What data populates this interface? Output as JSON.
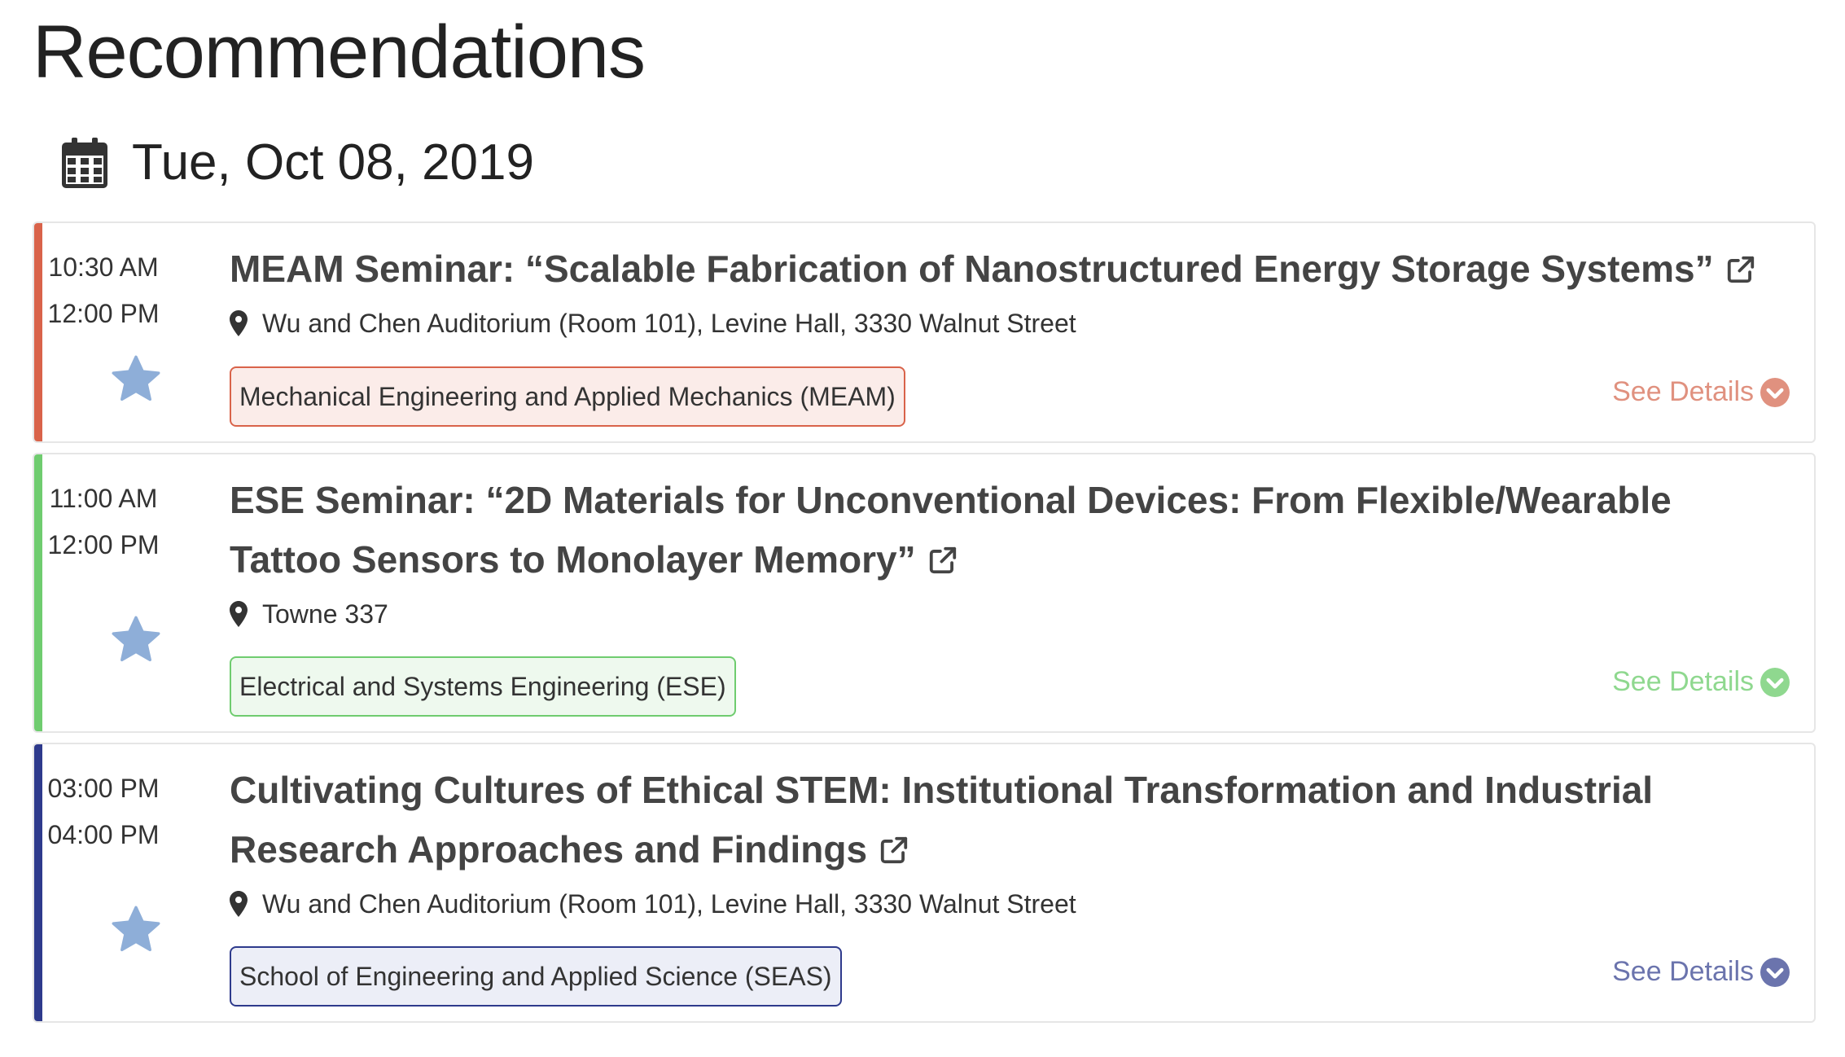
{
  "page": {
    "title": "Recommendations"
  },
  "date_header": {
    "icon": "calendar-icon",
    "label": "Tue, Oct 08, 2019"
  },
  "events": [
    {
      "start_time": "10:30 AM",
      "end_time": "12:00 PM",
      "title": "MEAM Seminar: “Scalable Fabrication of Nanostructured Energy Storage Systems”",
      "location": "Wu and Chen Auditorium (Room 101), Levine Hall, 3330 Walnut Street",
      "department": "Mechanical Engineering and Applied Mechanics (MEAM)",
      "details_label": "See Details",
      "accent_color": "#d9634a",
      "tag_bg": "#fbece9",
      "details_color": "#e0917f"
    },
    {
      "start_time": "11:00 AM",
      "end_time": "12:00 PM",
      "title": "ESE Seminar: “2D Materials for Unconventional Devices: From Flexible/Wearable Tattoo Sensors to Monolayer Memory”",
      "location": "Towne 337",
      "department": "Electrical and Systems Engineering (ESE)",
      "details_label": "See Details",
      "accent_color": "#6fcc6f",
      "tag_bg": "#eef9ee",
      "details_color": "#8fd88f"
    },
    {
      "start_time": "03:00 PM",
      "end_time": "04:00 PM",
      "title": "Cultivating Cultures of Ethical STEM: Institutional Transformation and Industrial Research Approaches and Findings",
      "location": "Wu and Chen Auditorium (Room 101), Levine Hall, 3330 Walnut Street",
      "department": "School of Engineering and Applied Science (SEAS)",
      "details_label": "See Details",
      "accent_color": "#2e3a8c",
      "tag_bg": "#eceef7",
      "details_color": "#6b74ad"
    }
  ],
  "icons": {
    "star": "star-icon",
    "external_link": "external-link-icon",
    "location": "map-pin-icon",
    "details": "chevron-down-circle-icon"
  },
  "colors": {
    "star": "#8eaed8"
  }
}
